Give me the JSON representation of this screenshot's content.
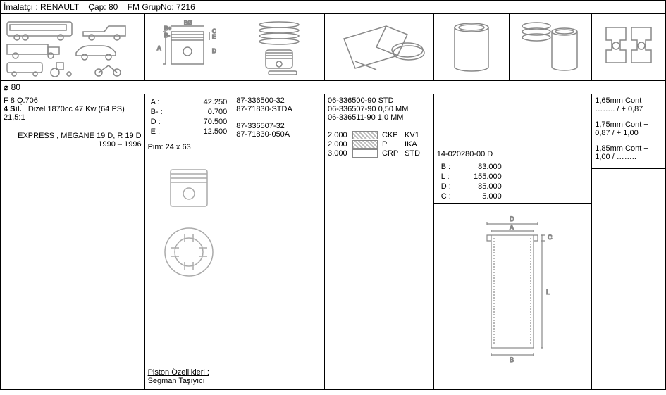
{
  "header": {
    "manufacturer_label": "İmalatçı :",
    "manufacturer": "RENAULT",
    "diameter_label": "Çap:",
    "diameter": "80",
    "group_label": "FM GrupNo:",
    "group": "7216"
  },
  "icon_row_widths": [
    205,
    126,
    130,
    155,
    108,
    117,
    104
  ],
  "diameter_row": {
    "symbol": "⌀",
    "value": "80"
  },
  "col1": {
    "engine_code": "F 8 Q.706",
    "cyl_bold": "4 Sil.",
    "cyl_rest": "Dizel 1870cc 47 Kw (64 PS) 21,5:1",
    "models": "EXPRESS , MEGANE 19 D, R 19 D",
    "years": "1990 – 1996"
  },
  "col2": {
    "dims": [
      {
        "k": "A :",
        "v": "42.250"
      },
      {
        "k": "B- :",
        "v": "0.700"
      },
      {
        "k": "D :",
        "v": "70.500"
      },
      {
        "k": "E :",
        "v": "12.500"
      }
    ],
    "pim": "Pim: 24 x 63",
    "props_label": "Piston Özellikleri :",
    "props_value": "Segman Taşıyıcı"
  },
  "col3": {
    "lines": [
      "87-336500-32",
      "87-71830-STDA",
      "",
      "87-336507-32",
      "87-71830-050A"
    ]
  },
  "col4": {
    "lines": [
      "06-336500-90 STD",
      "06-336507-90 0,50 MM",
      "06-336511-90 1,0 MM"
    ],
    "segs": [
      {
        "n": "2.000",
        "t1": "CKP",
        "t2": "KV1",
        "hatch": true
      },
      {
        "n": "2.000",
        "t1": "P",
        "t2": "IKA",
        "hatch": true
      },
      {
        "n": "3.000",
        "t1": "CRP",
        "t2": "STD",
        "hatch": false
      }
    ]
  },
  "col5": {
    "partno": "14-020280-00 D",
    "dims": [
      {
        "k": "B :",
        "v": "83.000"
      },
      {
        "k": "L :",
        "v": "155.000"
      },
      {
        "k": "D :",
        "v": "85.000"
      },
      {
        "k": "C :",
        "v": "5.000"
      }
    ]
  },
  "col6": {
    "rows": [
      {
        "l1": "1,65mm Cont",
        "l2": "…….. / + 0,87"
      },
      {
        "l1": "1,75mm Cont +",
        "l2": "0,87 / + 1,00"
      },
      {
        "l1": "1,85mm Cont +",
        "l2": "1,00 / …….."
      }
    ]
  }
}
